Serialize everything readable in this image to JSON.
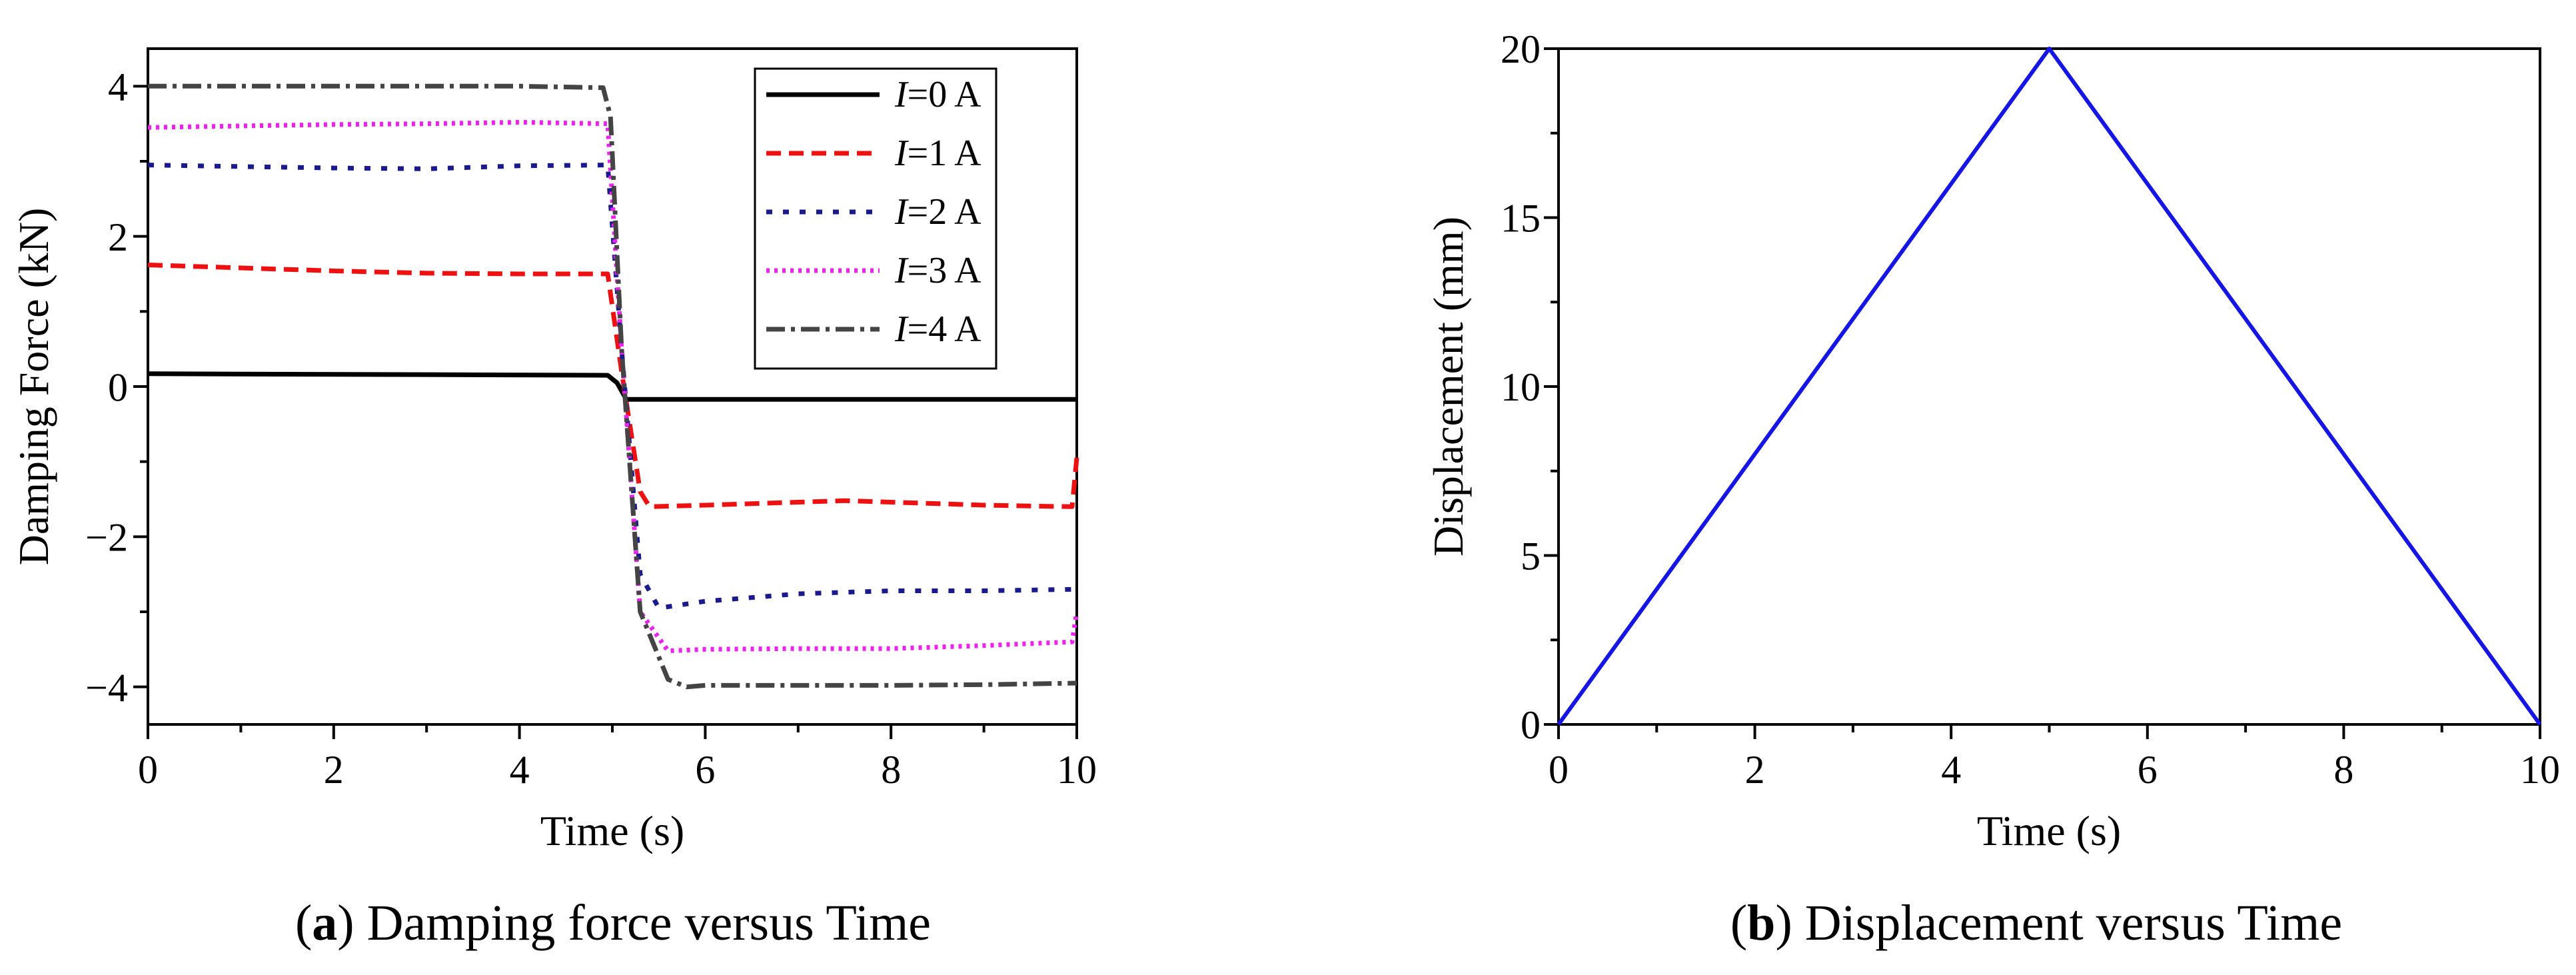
{
  "chart_data": [
    {
      "type": "line",
      "panel": "a",
      "xlabel": "Time (s)",
      "ylabel": "Damping Force (kN)",
      "xlim": [
        0,
        10
      ],
      "ylim": [
        -4.5,
        4.5
      ],
      "xticks": [
        "0",
        "2",
        "4",
        "6",
        "8",
        "10"
      ],
      "yticks": [
        "−4",
        "−2",
        "0",
        "2",
        "4"
      ],
      "caption": {
        "letter": "a",
        "open": "(",
        "close": ")",
        "text": " Damping force versus Time"
      },
      "legend": {
        "position": "top-right"
      },
      "series": [
        {
          "name": "I=0 A",
          "legend_var": "I",
          "legend_rest": "=0 A",
          "color": "#000000",
          "dash": "none",
          "x": [
            0,
            4.95,
            5.05,
            5.15,
            10
          ],
          "y": [
            0.17,
            0.15,
            0.05,
            -0.17,
            -0.17
          ]
        },
        {
          "name": "I=1 A",
          "legend_var": "I",
          "legend_rest": "=1 A",
          "color": "#ee1111",
          "dash": "22,12",
          "x": [
            0,
            1,
            2,
            3,
            4,
            4.95,
            5.1,
            5.3,
            5.4,
            6,
            7,
            7.5,
            8,
            9,
            9.95,
            10
          ],
          "y": [
            1.62,
            1.58,
            1.54,
            1.51,
            1.5,
            1.5,
            0.2,
            -1.4,
            -1.6,
            -1.58,
            -1.54,
            -1.52,
            -1.54,
            -1.58,
            -1.6,
            -0.95
          ]
        },
        {
          "name": "I=2 A",
          "legend_var": "I",
          "legend_rest": "=2 A",
          "color": "#1a1a8c",
          "dash": "9,16",
          "x": [
            0,
            1,
            2,
            3,
            4,
            4.95,
            5.1,
            5.3,
            5.5,
            6,
            7,
            8,
            9,
            10
          ],
          "y": [
            2.95,
            2.93,
            2.91,
            2.9,
            2.94,
            2.95,
            0.5,
            -2.5,
            -2.95,
            -2.86,
            -2.76,
            -2.72,
            -2.72,
            -2.7
          ]
        },
        {
          "name": "I=3 A",
          "legend_var": "I",
          "legend_rest": "=3 A",
          "color": "#ee22ee",
          "dash": "5,7",
          "x": [
            0,
            1,
            2,
            3,
            4,
            4.95,
            5.1,
            5.3,
            5.6,
            6,
            7,
            8,
            9,
            9.95,
            10
          ],
          "y": [
            3.45,
            3.47,
            3.49,
            3.5,
            3.52,
            3.5,
            0.5,
            -3.0,
            -3.52,
            -3.5,
            -3.49,
            -3.49,
            -3.45,
            -3.4,
            -3.0
          ]
        },
        {
          "name": "I=4 A",
          "legend_var": "I",
          "legend_rest": "=4 A",
          "color": "#444444",
          "dash": "28,9,6,9",
          "x": [
            0,
            1,
            2,
            3,
            4,
            4.9,
            4.98,
            5.1,
            5.3,
            5.6,
            5.8,
            6,
            7,
            8,
            9,
            10
          ],
          "y": [
            4.0,
            4.0,
            4.0,
            4.0,
            4.0,
            3.98,
            3.6,
            0.5,
            -3.0,
            -3.9,
            -4.0,
            -3.98,
            -3.98,
            -3.98,
            -3.97,
            -3.95
          ]
        }
      ]
    },
    {
      "type": "line",
      "panel": "b",
      "xlabel": "Time (s)",
      "ylabel": "Displacement (mm)",
      "xlim": [
        0,
        10
      ],
      "ylim": [
        0,
        20
      ],
      "xticks": [
        "0",
        "2",
        "4",
        "6",
        "8",
        "10"
      ],
      "yticks": [
        "0",
        "5",
        "10",
        "15",
        "20"
      ],
      "caption": {
        "letter": "b",
        "open": "(",
        "close": ")",
        "text": " Displacement versus Time"
      },
      "series": [
        {
          "name": "Displacement",
          "color": "#1515e6",
          "dash": "none",
          "x": [
            0,
            5,
            10
          ],
          "y": [
            0,
            20,
            0
          ]
        }
      ]
    }
  ]
}
